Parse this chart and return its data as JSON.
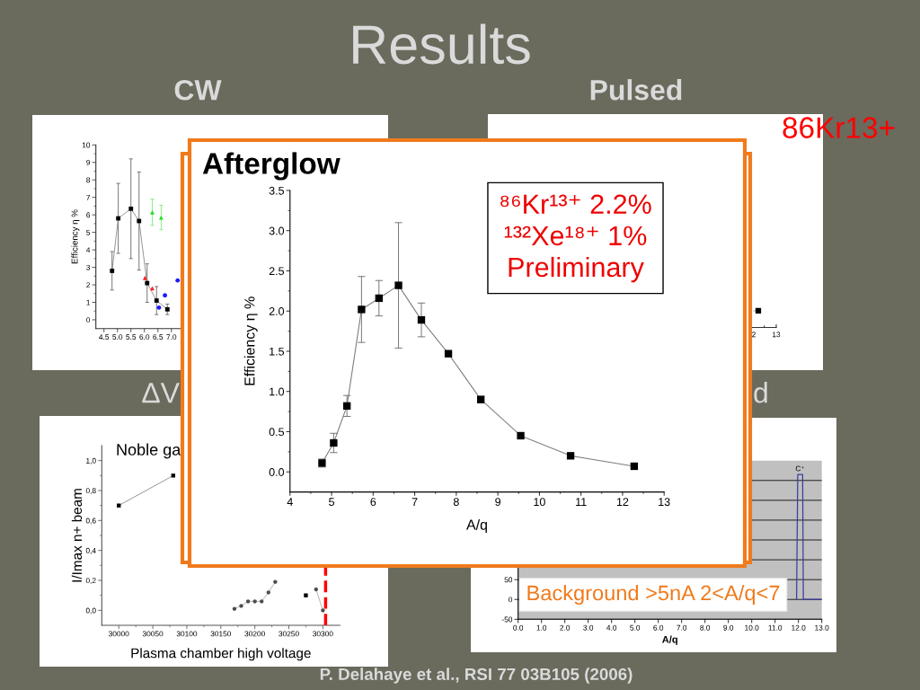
{
  "chart_data": [
    {
      "type": "other",
      "title": "Results",
      "annotations": [
        "P. Delahaye et al., RSI 77 03B105 (2006)"
      ]
    },
    {
      "type": "line",
      "title": "CW",
      "ylabel": "Efficiency η %",
      "xlim": [
        4.2,
        13
      ],
      "ylim": [
        -0.5,
        10
      ],
      "xticks": [
        4.5,
        {
          "value": 5,
          "label": "5.0"
        },
        5.5,
        {
          "value": 6,
          "label": "6.0"
        },
        6.5,
        {
          "value": 7,
          "label": "7.0"
        }
      ],
      "yticks": [
        0,
        1,
        2,
        3,
        4,
        5,
        6,
        7,
        8,
        9,
        10
      ],
      "series": [
        {
          "type": "line",
          "marker": "square",
          "color": "#000000",
          "x": [
            4.8,
            5.03,
            5.5,
            5.8,
            6.1,
            6.45,
            6.85
          ],
          "values": [
            2.8,
            5.8,
            6.35,
            5.65,
            2.1,
            1.1,
            0.6
          ],
          "errors": [
            1.1,
            2.0,
            2.85,
            2.8,
            1.1,
            0.8,
            0.3
          ]
        },
        {
          "type": "scatter",
          "marker": "triangle",
          "color": "#ff1a1a",
          "x": [
            6.02,
            6.29
          ],
          "values": [
            2.4,
            1.8
          ]
        },
        {
          "type": "scatter",
          "marker": "triangle",
          "color": "#22dd22",
          "x": [
            6.29,
            6.62
          ],
          "values": [
            6.15,
            5.85
          ],
          "errors": [
            0.75,
            0.7
          ]
        },
        {
          "type": "scatter",
          "marker": "circle",
          "color": "#1a1aff",
          "x": [
            6.54,
            6.76,
            7.23
          ],
          "values": [
            0.7,
            1.4,
            2.25
          ]
        }
      ]
    },
    {
      "type": "other",
      "title": "Pulsed",
      "annotations": [
        "86Kr13+",
        "2",
        "13"
      ]
    },
    {
      "type": "line",
      "title": "Afterglow",
      "xlabel": "A/q",
      "ylabel": "Efficiency η %",
      "annotations": [
        "⁸⁶Kr¹³⁺ 2.2%",
        "¹³²Xe¹⁸⁺ 1%",
        "Preliminary"
      ],
      "marker": "square",
      "xlim": [
        4,
        13
      ],
      "ylim": [
        -0.25,
        3.5
      ],
      "xticks": [
        4,
        5,
        6,
        7,
        8,
        9,
        10,
        11,
        12,
        13
      ],
      "yticks": [
        {
          "value": 0,
          "label": "0.0"
        },
        0.5,
        {
          "value": 1,
          "label": "1.0"
        },
        1.5,
        {
          "value": 2,
          "label": "2.0"
        },
        2.5,
        {
          "value": 3,
          "label": "3.0"
        },
        3.5
      ],
      "x": [
        4.77,
        5.05,
        5.37,
        5.72,
        6.14,
        6.61,
        7.16,
        7.81,
        8.59,
        9.55,
        10.75,
        12.28
      ],
      "series": [
        {
          "color": "#000000",
          "values": [
            0.11,
            0.36,
            0.82,
            2.02,
            2.16,
            2.32,
            1.89,
            1.47,
            0.9,
            0.45,
            0.2,
            0.07
          ],
          "errors": [
            0.05,
            0.12,
            0.13,
            0.41,
            0.22,
            0.78,
            0.21,
            null,
            0.04,
            null,
            null,
            null
          ]
        }
      ]
    },
    {
      "type": "line",
      "title": "ΔV",
      "xlabel": "Plasma chamber high voltage",
      "ylabel": "I/Imax n+ beam",
      "annotations": [
        "Noble ga"
      ],
      "xlim": [
        29975,
        30325
      ],
      "ylim": [
        -0.1,
        1.1
      ],
      "xticks": [
        30000,
        30050,
        30100,
        30150,
        30200,
        30250,
        30300
      ],
      "yticks": [
        {
          "value": 0,
          "label": "0,0"
        },
        {
          "value": 0.2,
          "label": "0,2"
        },
        {
          "value": 0.4,
          "label": "0,4"
        },
        {
          "value": 0.6,
          "label": "0,6"
        },
        {
          "value": 0.8,
          "label": "0,8"
        },
        {
          "value": 1,
          "label": "1,0"
        }
      ],
      "ref_lines": [
        {
          "axis": "x",
          "value": 30304,
          "color": "#ff0000",
          "line_style": "dashed"
        }
      ],
      "series": [
        {
          "marker": "square",
          "color": "#000000",
          "x": [
            30000,
            30080,
            null,
            30275
          ],
          "values": [
            0.7,
            0.9,
            null,
            0.1
          ]
        },
        {
          "marker": "circle",
          "color": "#4d4d4d",
          "x": [
            30170,
            30180,
            30190,
            30200,
            30210,
            30220,
            30230,
            null,
            30290,
            30300
          ],
          "values": [
            0.01,
            0.03,
            0.06,
            0.06,
            0.06,
            0.12,
            0.19,
            null,
            0.14,
            0.0
          ]
        }
      ]
    },
    {
      "type": "line",
      "title": "d",
      "xlabel": "A/q",
      "annotations": [
        "Background >5nA 2<A/q<7",
        {
          "text": "C⁺",
          "x": 12.07,
          "y": 315
        }
      ],
      "grid": "y",
      "xlim": [
        0,
        13
      ],
      "ylim": [
        -50,
        350
      ],
      "xticks": [
        {
          "value": 0,
          "label": "0.0"
        },
        {
          "value": 1,
          "label": "1.0"
        },
        {
          "value": 2,
          "label": "2.0"
        },
        {
          "value": 3,
          "label": "3.0"
        },
        {
          "value": 4,
          "label": "4.0"
        },
        {
          "value": 5,
          "label": "5.0"
        },
        {
          "value": 6,
          "label": "6.0"
        },
        {
          "value": 7,
          "label": "7.0"
        },
        {
          "value": 8,
          "label": "8.0"
        },
        {
          "value": 9,
          "label": "9.0"
        },
        {
          "value": 10,
          "label": "10.0"
        },
        {
          "value": 11,
          "label": "11.0"
        },
        {
          "value": 12,
          "label": "12.0"
        },
        {
          "value": 13,
          "label": "13.0"
        }
      ],
      "yticks": [
        -50,
        0,
        50,
        {
          "value": 100,
          "label": null
        },
        {
          "value": 150,
          "label": null
        },
        {
          "value": 200,
          "label": null
        },
        {
          "value": 250,
          "label": null
        },
        {
          "value": 300,
          "label": null
        }
      ],
      "series": [
        {
          "color": "#3c3ca0",
          "x": [
            11.92,
            11.97,
            12.18,
            12.21,
            13
          ],
          "values": [
            0,
            315,
            315,
            0,
            0
          ]
        }
      ]
    }
  ]
}
